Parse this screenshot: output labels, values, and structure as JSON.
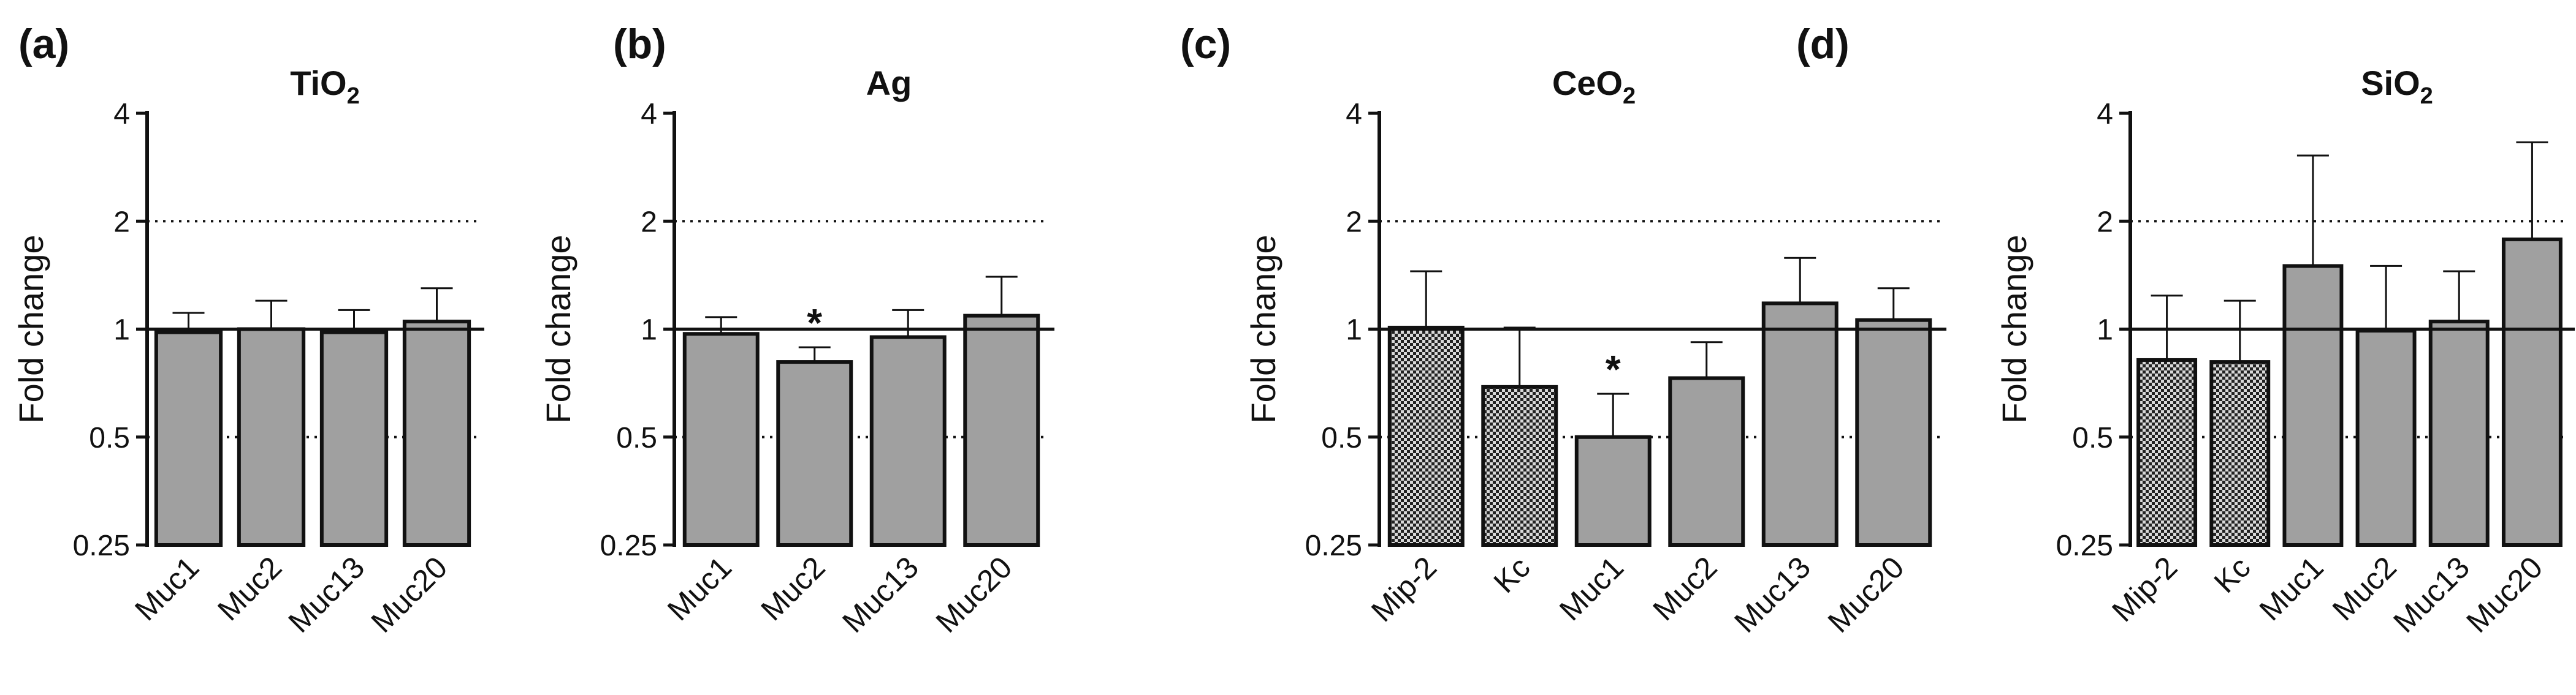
{
  "colors": {
    "bar_fill": "#a0a0a0",
    "bar_stroke": "#111111",
    "axis": "#111111",
    "text": "#111111",
    "hatch_dark": "#222222",
    "hatch_light": "#d8d8d8"
  },
  "chart_data": [
    {
      "panel_label": "(a)",
      "type": "bar",
      "title": "TiO",
      "title_sub": "2",
      "ylabel": "Fold change",
      "yscale": "log2",
      "ylim": [
        0.25,
        4
      ],
      "yticks": [
        "0.25",
        "0.5",
        "1",
        "2",
        "4"
      ],
      "reference_lines": {
        "solid": 1,
        "dotted": [
          0.5,
          2
        ]
      },
      "categories": [
        "Muc1",
        "Muc2",
        "Muc13",
        "Muc20"
      ],
      "values": [
        0.98,
        1.0,
        0.98,
        1.05
      ],
      "error_upper": [
        1.11,
        1.2,
        1.13,
        1.3
      ],
      "patterns": [
        "solid",
        "solid",
        "solid",
        "solid"
      ],
      "significance": []
    },
    {
      "panel_label": "(b)",
      "type": "bar",
      "title": "Ag",
      "title_sub": "",
      "ylabel": "Fold change",
      "yscale": "log2",
      "ylim": [
        0.25,
        4
      ],
      "yticks": [
        "0.25",
        "0.5",
        "1",
        "2",
        "4"
      ],
      "reference_lines": {
        "solid": 1,
        "dotted": [
          0.5,
          2
        ]
      },
      "categories": [
        "Muc1",
        "Muc2",
        "Muc13",
        "Muc20"
      ],
      "values": [
        0.97,
        0.81,
        0.95,
        1.09
      ],
      "error_upper": [
        1.08,
        0.89,
        1.13,
        1.4
      ],
      "patterns": [
        "solid",
        "solid",
        "solid",
        "solid"
      ],
      "significance": [
        {
          "index": 1,
          "mark": "*"
        }
      ]
    },
    {
      "panel_label": "(c)",
      "type": "bar",
      "title": "CeO",
      "title_sub": "2",
      "ylabel": "Fold change",
      "yscale": "log2",
      "ylim": [
        0.25,
        4
      ],
      "yticks": [
        "0.25",
        "0.5",
        "1",
        "2",
        "4"
      ],
      "reference_lines": {
        "solid": 1,
        "dotted": [
          0.5,
          2
        ]
      },
      "categories": [
        "Mip-2",
        "Kc",
        "Muc1",
        "Muc2",
        "Muc13",
        "Muc20"
      ],
      "values": [
        1.01,
        0.69,
        0.5,
        0.73,
        1.18,
        1.06
      ],
      "error_upper": [
        1.45,
        1.01,
        0.66,
        0.92,
        1.58,
        1.3
      ],
      "patterns": [
        "hatched",
        "hatched",
        "solid",
        "solid",
        "solid",
        "solid"
      ],
      "significance": [
        {
          "index": 2,
          "mark": "*"
        }
      ]
    },
    {
      "panel_label": "(d)",
      "type": "bar",
      "title": "SiO",
      "title_sub": "2",
      "ylabel": "Fold change",
      "yscale": "log2",
      "ylim": [
        0.25,
        4
      ],
      "yticks": [
        "0.25",
        "0.5",
        "1",
        "2",
        "4"
      ],
      "reference_lines": {
        "solid": 1,
        "dotted": [
          0.5,
          2
        ]
      },
      "categories": [
        "Mip-2",
        "Kc",
        "Muc1",
        "Muc2",
        "Muc13",
        "Muc20"
      ],
      "values": [
        0.82,
        0.81,
        1.5,
        0.99,
        1.05,
        1.78
      ],
      "error_upper": [
        1.24,
        1.2,
        3.05,
        1.5,
        1.45,
        3.32
      ],
      "patterns": [
        "hatched",
        "hatched",
        "solid",
        "solid",
        "solid",
        "solid"
      ],
      "significance": []
    }
  ]
}
